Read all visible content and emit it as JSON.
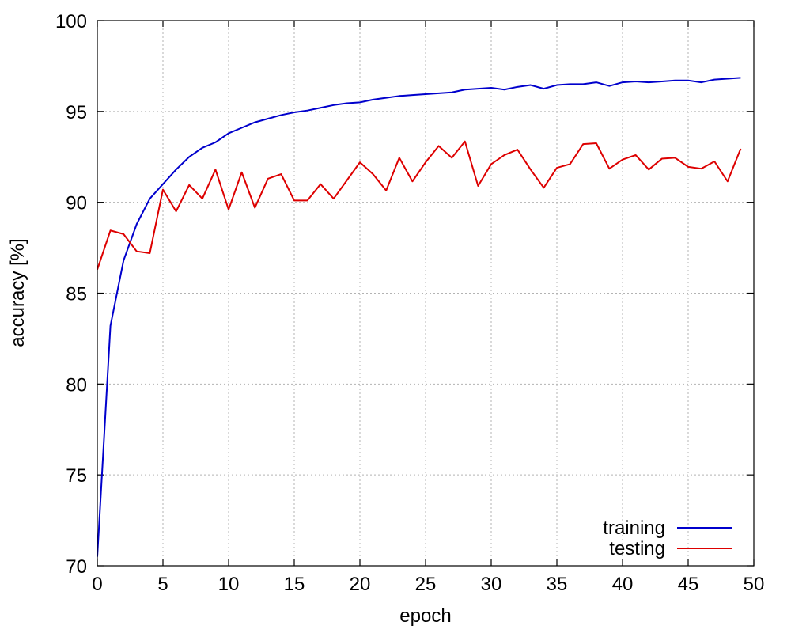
{
  "chart_data": {
    "type": "line",
    "title": "",
    "xlabel": "epoch",
    "ylabel": "accuracy [%]",
    "xlim": [
      0,
      50
    ],
    "ylim": [
      70,
      100
    ],
    "x_ticks": [
      0,
      5,
      10,
      15,
      20,
      25,
      30,
      35,
      40,
      45,
      50
    ],
    "y_ticks": [
      70,
      75,
      80,
      85,
      90,
      95,
      100
    ],
    "grid": true,
    "legend_position": "bottom-right",
    "x": [
      0,
      1,
      2,
      3,
      4,
      5,
      6,
      7,
      8,
      9,
      10,
      11,
      12,
      13,
      14,
      15,
      16,
      17,
      18,
      19,
      20,
      21,
      22,
      23,
      24,
      25,
      26,
      27,
      28,
      29,
      30,
      31,
      32,
      33,
      34,
      35,
      36,
      37,
      38,
      39,
      40,
      41,
      42,
      43,
      44,
      45,
      46,
      47,
      48,
      49
    ],
    "series": [
      {
        "name": "training",
        "color": "#0000cc",
        "values": [
          70.5,
          83.2,
          86.8,
          88.8,
          90.2,
          91.0,
          91.8,
          92.5,
          93.0,
          93.3,
          93.8,
          94.1,
          94.4,
          94.6,
          94.8,
          94.95,
          95.05,
          95.2,
          95.35,
          95.45,
          95.5,
          95.65,
          95.75,
          95.85,
          95.9,
          95.95,
          96.0,
          96.05,
          96.2,
          96.25,
          96.3,
          96.2,
          96.35,
          96.45,
          96.25,
          96.45,
          96.5,
          96.5,
          96.6,
          96.4,
          96.6,
          96.65,
          96.6,
          96.65,
          96.7,
          96.7,
          96.6,
          96.75,
          96.8,
          96.85
        ]
      },
      {
        "name": "testing",
        "color": "#dd0000",
        "values": [
          86.3,
          88.45,
          88.25,
          87.3,
          87.2,
          90.7,
          89.5,
          90.95,
          90.2,
          91.8,
          89.6,
          91.65,
          89.7,
          91.3,
          91.55,
          90.1,
          90.1,
          91.0,
          90.2,
          91.2,
          92.2,
          91.55,
          90.65,
          92.45,
          91.15,
          92.2,
          93.1,
          92.45,
          93.35,
          90.9,
          92.1,
          92.6,
          92.9,
          91.8,
          90.8,
          91.9,
          92.1,
          93.2,
          93.25,
          91.85,
          92.35,
          92.6,
          91.8,
          92.4,
          92.45,
          91.95,
          91.85,
          92.25,
          91.15,
          92.95
        ]
      }
    ]
  }
}
